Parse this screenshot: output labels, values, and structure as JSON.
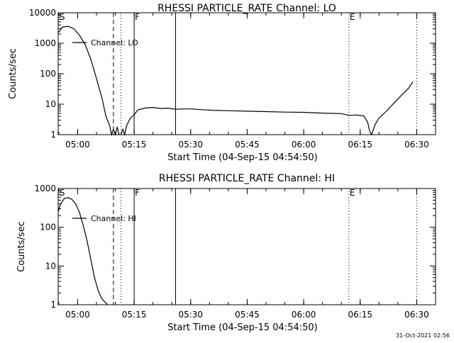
{
  "chart_data": [
    {
      "type": "line",
      "title": "RHESSI PARTICLE_RATE Channel: LO",
      "xlabel": "Start Time (04-Sep-15 04:54:50)",
      "ylabel": "Counts/sec",
      "yscale": "log",
      "xlim": [
        "04:54:50",
        "06:35:00"
      ],
      "ylim": [
        1,
        10000
      ],
      "x_ticks": [
        "05:00",
        "05:15",
        "05:30",
        "05:45",
        "06:00",
        "06:15",
        "06:30"
      ],
      "y_ticks": [
        "1",
        "10",
        "100",
        "1000",
        "10000"
      ],
      "legend": {
        "label": "Channel: LO",
        "position": "top-left"
      },
      "series": [
        {
          "name": "Channel: LO",
          "x": [
            "04:54:50",
            "04:56:00",
            "04:57:30",
            "04:59:00",
            "05:00:30",
            "05:02:00",
            "05:03:30",
            "05:05:00",
            "05:06:30",
            "05:07:30",
            "05:08:30",
            "05:09:00",
            "05:09:30",
            "05:10:00",
            "05:10:30",
            "05:11:00",
            "05:11:30",
            "05:12:00",
            "05:12:30",
            "05:13:00",
            "05:14:00",
            "05:15:00",
            "05:16:00",
            "05:18:00",
            "05:20:00",
            "05:22:00",
            "05:24:00",
            "05:26:00",
            "05:28:00",
            "05:30:00",
            "05:33:00",
            "05:36:00",
            "05:40:00",
            "05:45:00",
            "05:50:00",
            "05:55:00",
            "06:00:00",
            "06:05:00",
            "06:10:00",
            "06:12:00",
            "06:14:00",
            "06:16:00",
            "06:17:00",
            "06:17:30",
            "06:18:00",
            "06:18:30",
            "06:19:00",
            "06:20:00",
            "06:22:00",
            "06:24:00",
            "06:26:00",
            "06:28:00",
            "06:29:00"
          ],
          "values": [
            2200,
            3400,
            3600,
            3000,
            1800,
            900,
            300,
            70,
            15,
            4,
            2,
            1,
            1.5,
            1,
            1.8,
            1,
            1,
            1.5,
            1,
            2,
            3.5,
            4.5,
            6.5,
            7.5,
            7.8,
            7.2,
            7.4,
            6.8,
            7.0,
            7.0,
            6.6,
            6.3,
            6.1,
            5.9,
            5.7,
            5.5,
            5.4,
            5.1,
            4.9,
            4.3,
            4.4,
            4.1,
            2.5,
            1.3,
            1,
            1.5,
            2.2,
            3.5,
            6,
            11,
            20,
            35,
            55
          ]
        }
      ],
      "markers": [
        {
          "label": "S",
          "time": "04:55:00",
          "style": "label"
        },
        {
          "time": "05:09:30",
          "style": "dashed"
        },
        {
          "time": "05:11:30",
          "style": "dotted"
        },
        {
          "label": "F",
          "time": "05:15:00",
          "style": "solid"
        },
        {
          "time": "05:26:00",
          "style": "solid"
        },
        {
          "label": "E",
          "time": "06:12:00",
          "style": "dotted"
        },
        {
          "time": "06:30:00",
          "style": "dotted"
        }
      ]
    },
    {
      "type": "line",
      "title": "RHESSI PARTICLE_RATE Channel: HI",
      "xlabel": "Start Time (04-Sep-15 04:54:50)",
      "ylabel": "Counts/sec",
      "yscale": "log",
      "xlim": [
        "04:54:50",
        "06:35:00"
      ],
      "ylim": [
        1,
        1000
      ],
      "x_ticks": [
        "05:00",
        "05:15",
        "05:30",
        "05:45",
        "06:00",
        "06:15",
        "06:30"
      ],
      "y_ticks": [
        "1",
        "10",
        "100",
        "1000"
      ],
      "legend": {
        "label": "Channel: HI",
        "position": "top-left"
      },
      "series": [
        {
          "name": "Channel: HI",
          "x": [
            "04:54:50",
            "04:55:30",
            "04:56:30",
            "04:57:30",
            "04:58:30",
            "04:59:30",
            "05:00:30",
            "05:01:30",
            "05:02:30",
            "05:03:30",
            "05:04:30",
            "05:05:30",
            "05:06:30",
            "05:07:30",
            "05:08:00"
          ],
          "values": [
            250,
            400,
            560,
            580,
            520,
            400,
            240,
            110,
            45,
            15,
            5,
            2.2,
            1.4,
            1.1,
            1
          ]
        }
      ],
      "markers": [
        {
          "label": "S",
          "time": "04:55:00",
          "style": "label"
        },
        {
          "time": "05:09:30",
          "style": "dashed"
        },
        {
          "time": "05:11:30",
          "style": "dotted"
        },
        {
          "label": "F",
          "time": "05:15:00",
          "style": "solid"
        },
        {
          "time": "05:26:00",
          "style": "solid"
        },
        {
          "label": "E",
          "time": "06:12:00",
          "style": "dotted"
        },
        {
          "time": "06:30:00",
          "style": "dotted"
        }
      ]
    }
  ],
  "footer": {
    "timestamp": "31-Oct-2021 02:56"
  }
}
